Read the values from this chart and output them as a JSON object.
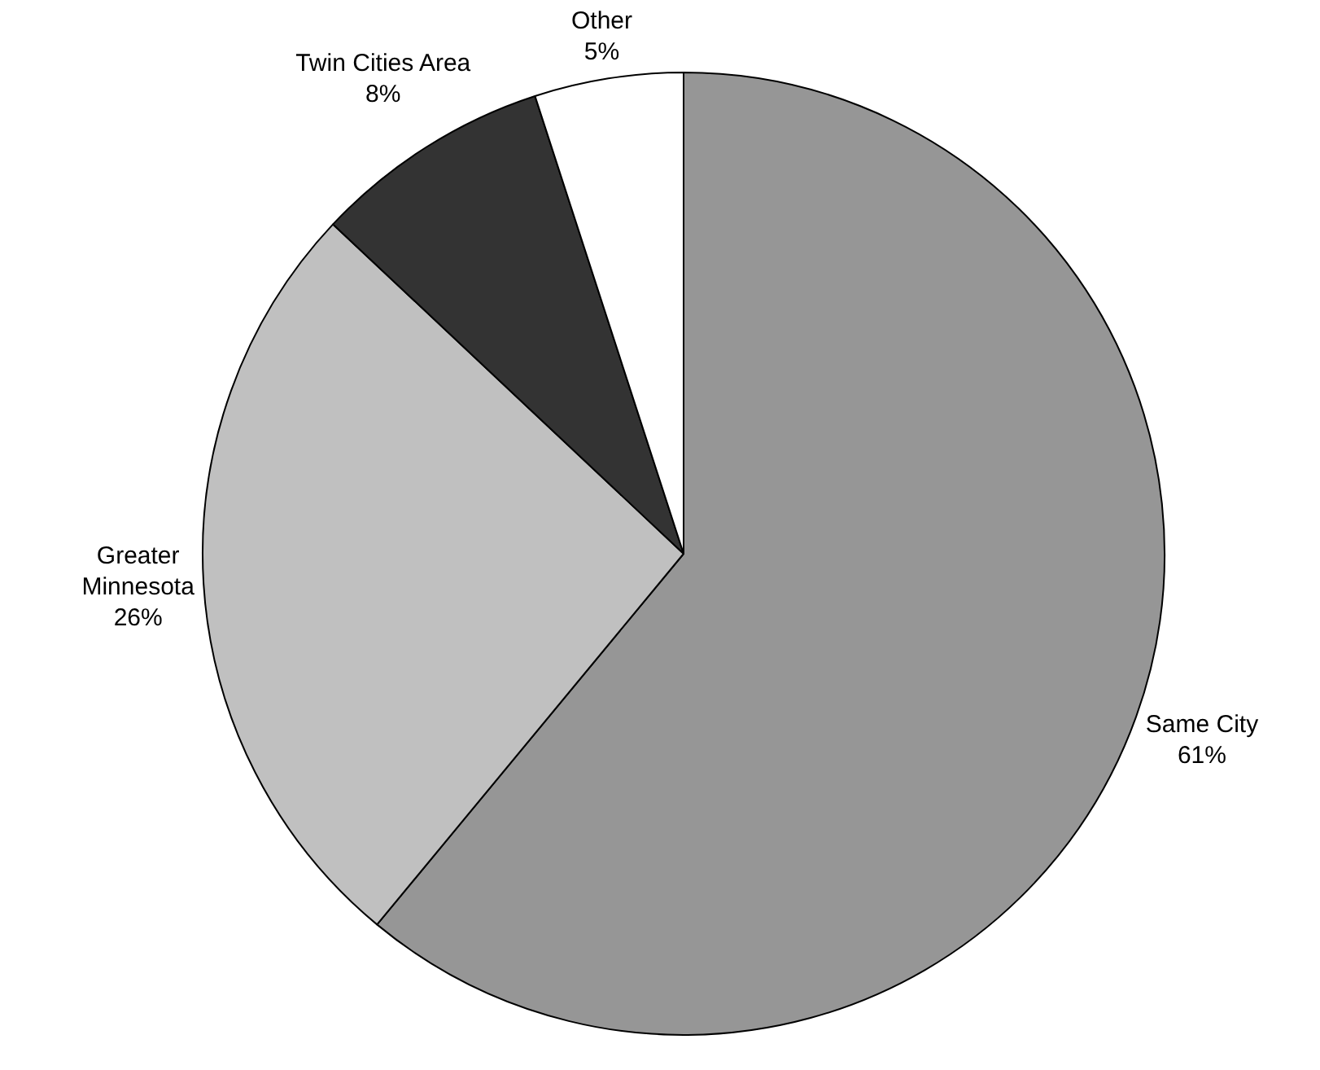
{
  "chart_data": {
    "type": "pie",
    "categories": [
      "Same City",
      "Greater Minnesota",
      "Twin Cities Area",
      "Other"
    ],
    "values": [
      61,
      26,
      8,
      5
    ],
    "value_labels": [
      "61%",
      "26%",
      "8%",
      "5%"
    ],
    "colors": [
      "#969696",
      "#c0c0c0",
      "#333333",
      "#ffffff"
    ],
    "legend": false
  }
}
